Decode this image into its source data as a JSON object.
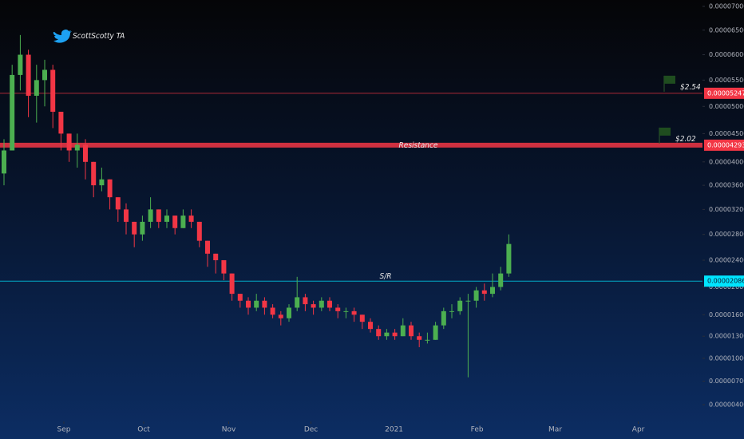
{
  "chart_data": {
    "type": "candlestick",
    "watermark": "ScottScotty TA",
    "up_color": "#4caf50",
    "down_color": "#f23645",
    "open": [
      3.8e-05,
      4.2e-05,
      5.6e-05,
      6e-05,
      5.2e-05,
      5.5e-05,
      5.7e-05,
      4.9e-05,
      4.5e-05,
      4.2e-05,
      4.3e-05,
      4e-05,
      3.6e-05,
      3.7e-05,
      3.4e-05,
      3.2e-05,
      3e-05,
      2.8e-05,
      3e-05,
      3.2e-05,
      3e-05,
      3.1e-05,
      2.9e-05,
      3.1e-05,
      3e-05,
      2.7e-05,
      2.5e-05,
      2.4e-05,
      2.2e-05,
      1.9e-05,
      1.8e-05,
      1.7e-05,
      1.8e-05,
      1.7e-05,
      1.6e-05,
      1.55e-05,
      1.7e-05,
      1.85e-05,
      1.75e-05,
      1.7e-05,
      1.8e-05,
      1.7e-05,
      1.65e-05,
      1.65e-05,
      1.6e-05,
      1.5e-05,
      1.4e-05,
      1.3e-05,
      1.35e-05,
      1.3e-05,
      1.45e-05,
      1.3e-05,
      1.25e-05,
      1.25e-05,
      1.45e-05,
      1.65e-05,
      1.65e-05,
      1.8e-05,
      1.8e-05,
      1.95e-05,
      1.9e-05,
      2e-05,
      2.2e-05
    ],
    "high": [
      4.4e-05,
      5.8e-05,
      6.4e-05,
      6.1e-05,
      5.8e-05,
      5.9e-05,
      5.8e-05,
      4.9e-05,
      4.5e-05,
      4.5e-05,
      4.4e-05,
      4e-05,
      3.9e-05,
      3.7e-05,
      3.4e-05,
      3.3e-05,
      3e-05,
      3.1e-05,
      3.4e-05,
      3.2e-05,
      3.2e-05,
      3.1e-05,
      3.2e-05,
      3.2e-05,
      3e-05,
      2.7e-05,
      2.5e-05,
      2.4e-05,
      2.2e-05,
      1.9e-05,
      1.85e-05,
      1.9e-05,
      1.85e-05,
      1.75e-05,
      1.65e-05,
      1.75e-05,
      2.15e-05,
      1.9e-05,
      1.8e-05,
      1.85e-05,
      1.85e-05,
      1.75e-05,
      1.7e-05,
      1.7e-05,
      1.6e-05,
      1.55e-05,
      1.45e-05,
      1.4e-05,
      1.4e-05,
      1.55e-05,
      1.5e-05,
      1.35e-05,
      1.35e-05,
      1.5e-05,
      1.7e-05,
      1.75e-05,
      1.85e-05,
      1.9e-05,
      2e-05,
      2.05e-05,
      2.2e-05,
      2.3e-05,
      2.8e-05
    ],
    "low": [
      3.6e-05,
      4.2e-05,
      5.3e-05,
      4.8e-05,
      4.7e-05,
      5e-05,
      4.6e-05,
      4.2e-05,
      4e-05,
      3.9e-05,
      3.7e-05,
      3.4e-05,
      3.5e-05,
      3.2e-05,
      3e-05,
      2.8e-05,
      2.6e-05,
      2.7e-05,
      2.9e-05,
      2.9e-05,
      2.9e-05,
      2.8e-05,
      2.9e-05,
      2.9e-05,
      2.6e-05,
      2.3e-05,
      2.2e-05,
      2.1e-05,
      1.8e-05,
      1.7e-05,
      1.6e-05,
      1.65e-05,
      1.6e-05,
      1.55e-05,
      1.45e-05,
      1.5e-05,
      1.65e-05,
      1.65e-05,
      1.6e-05,
      1.65e-05,
      1.65e-05,
      1.55e-05,
      1.55e-05,
      1.5e-05,
      1.4e-05,
      1.35e-05,
      1.25e-05,
      1.25e-05,
      1.25e-05,
      1.3e-05,
      1.25e-05,
      1.15e-05,
      1.2e-05,
      1.25e-05,
      1.4e-05,
      1.55e-05,
      1.6e-05,
      7.5e-06,
      1.7e-05,
      1.8e-05,
      1.85e-05,
      1.95e-05,
      2.15e-05
    ],
    "close": [
      4.2e-05,
      5.6e-05,
      6e-05,
      5.2e-05,
      5.5e-05,
      5.7e-05,
      4.9e-05,
      4.5e-05,
      4.2e-05,
      4.3e-05,
      4e-05,
      3.6e-05,
      3.7e-05,
      3.4e-05,
      3.2e-05,
      3e-05,
      2.8e-05,
      3e-05,
      3.2e-05,
      3e-05,
      3.1e-05,
      2.9e-05,
      3.1e-05,
      3e-05,
      2.7e-05,
      2.5e-05,
      2.4e-05,
      2.2e-05,
      1.9e-05,
      1.8e-05,
      1.7e-05,
      1.8e-05,
      1.7e-05,
      1.6e-05,
      1.55e-05,
      1.7e-05,
      1.85e-05,
      1.75e-05,
      1.7e-05,
      1.8e-05,
      1.7e-05,
      1.65e-05,
      1.65e-05,
      1.6e-05,
      1.5e-05,
      1.4e-05,
      1.3e-05,
      1.35e-05,
      1.3e-05,
      1.45e-05,
      1.3e-05,
      1.25e-05,
      1.25e-05,
      1.45e-05,
      1.65e-05,
      1.65e-05,
      1.8e-05,
      1.8e-05,
      1.95e-05,
      1.9e-05,
      2e-05,
      2.2e-05,
      2.65e-05
    ],
    "xticks": [
      {
        "value": 7.35,
        "label": "Sep"
      },
      {
        "value": 17.16,
        "label": "Oct"
      },
      {
        "value": 27.6,
        "label": "Nov"
      },
      {
        "value": 37.7,
        "label": "Dec"
      },
      {
        "value": 47.9,
        "label": "2021"
      },
      {
        "value": 58.1,
        "label": "Feb"
      },
      {
        "value": 67.7,
        "label": "Mar"
      },
      {
        "value": 77.9,
        "label": "Apr"
      }
    ],
    "ylim": [
      4e-06,
      7e-05
    ],
    "yticks": [
      {
        "value": 7e-05,
        "label": "0.00007000"
      },
      {
        "value": 6.5e-05,
        "label": "0.00006500"
      },
      {
        "value": 6e-05,
        "label": "0.00006000"
      },
      {
        "value": 5.5e-05,
        "label": "0.00005500"
      },
      {
        "value": 5e-05,
        "label": "0.00005000"
      },
      {
        "value": 4.5e-05,
        "label": "0.00004500"
      },
      {
        "value": 4e-05,
        "label": "0.00004000"
      },
      {
        "value": 3.6e-05,
        "label": "0.00003600"
      },
      {
        "value": 3.2e-05,
        "label": "0.00003200"
      },
      {
        "value": 2.8e-05,
        "label": "0.00002800"
      },
      {
        "value": 2.4e-05,
        "label": "0.00002400"
      },
      {
        "value": 2e-05,
        "label": "0.00002000"
      },
      {
        "value": 1.6e-05,
        "label": "0.00001600"
      },
      {
        "value": 1.3e-05,
        "label": "0.00001300"
      },
      {
        "value": 1e-05,
        "label": "0.00001000"
      },
      {
        "value": 7e-06,
        "label": "0.00000700"
      },
      {
        "value": 4e-06,
        "label": "0.00000400"
      }
    ],
    "levels": [
      {
        "value": 5.247e-05,
        "color": "#f23645",
        "flag": "$2.54"
      },
      {
        "value": 4.293e-05,
        "color": "#f23645",
        "flag": "$2.02",
        "text": "Resistance"
      },
      {
        "value": 2.086e-05,
        "color": "#00e5ff",
        "text": "S/R"
      }
    ]
  }
}
